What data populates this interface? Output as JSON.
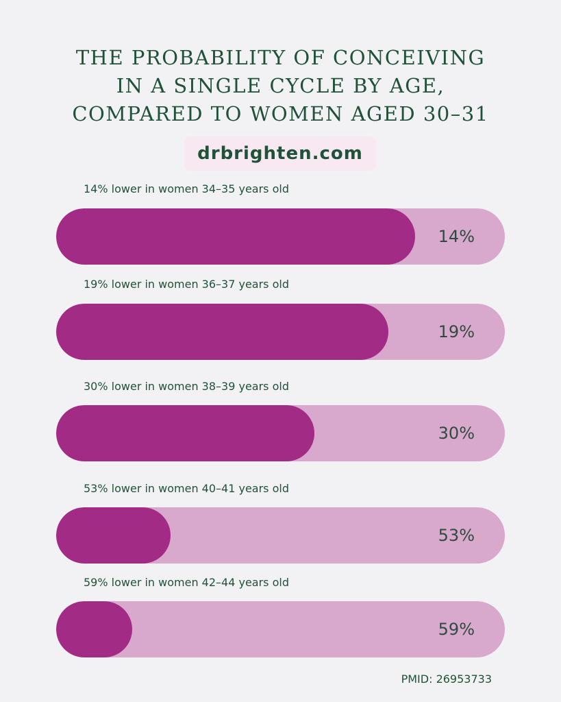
{
  "chart_data": {
    "type": "bar",
    "orientation": "horizontal",
    "title_lines": [
      "THE PROBABILITY OF CONCEIVING",
      "IN A SINGLE CYCLE BY AGE,",
      "COMPARED TO WOMEN AGED 30–31"
    ],
    "subtitle": "drbrighten.com",
    "categories": [
      "14% lower in women 34–35 years old",
      "19% lower in women 36–37 years old",
      "30% lower in women 38–39 years old",
      "53% lower in women 40–41 years old",
      "59% lower in women 42–44 years old"
    ],
    "values": [
      14,
      19,
      30,
      53,
      59
    ],
    "value_labels": [
      "14%",
      "19%",
      "30%",
      "53%",
      "59%"
    ],
    "fill_fraction": [
      0.8,
      0.74,
      0.575,
      0.255,
      0.17
    ],
    "colors": {
      "fill": "#a22c85",
      "track": "#d8a9cd",
      "text": "#1f5238",
      "background": "#f2f1f4"
    },
    "source": "PMID: 26953733"
  }
}
